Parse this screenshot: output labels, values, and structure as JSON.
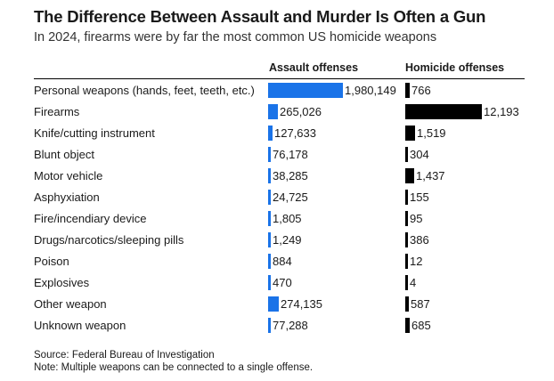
{
  "title": "The Difference Between Assault and Murder Is Often a Gun",
  "subtitle": "In 2024, firearms were by far the most common US homicide weapons",
  "colors": {
    "assault": "#1a73e8",
    "homicide": "#000000"
  },
  "chart_data": {
    "type": "bar",
    "orientation": "horizontal",
    "categories": [
      "Personal weapons (hands, feet, teeth, etc.)",
      "Firearms",
      "Knife/cutting instrument",
      "Blunt object",
      "Motor vehicle",
      "Asphyxiation",
      "Fire/incendiary device",
      "Drugs/narcotics/sleeping pills",
      "Poison",
      "Explosives",
      "Other weapon",
      "Unknown weapon"
    ],
    "series": [
      {
        "name": "Assault offenses",
        "values": [
          1980149,
          265026,
          127633,
          76178,
          38285,
          24725,
          1805,
          1249,
          884,
          470,
          274135,
          77288
        ],
        "labels": [
          "1,980,149",
          "265,026",
          "127,633",
          "76,178",
          "38,285",
          "24,725",
          "1,805",
          "1,249",
          "884",
          "470",
          "274,135",
          "77,288"
        ]
      },
      {
        "name": "Homicide offenses",
        "values": [
          766,
          12193,
          1519,
          304,
          1437,
          155,
          95,
          386,
          12,
          4,
          587,
          685
        ],
        "labels": [
          "766",
          "12,193",
          "1,519",
          "304",
          "1,437",
          "155",
          "95",
          "386",
          "12",
          "4",
          "587",
          "685"
        ]
      }
    ],
    "grid": false,
    "legend": "column headers"
  },
  "footer": {
    "source": "Source: Federal Bureau of Investigation",
    "note": "Note: Multiple weapons can be connected to a single offense."
  }
}
